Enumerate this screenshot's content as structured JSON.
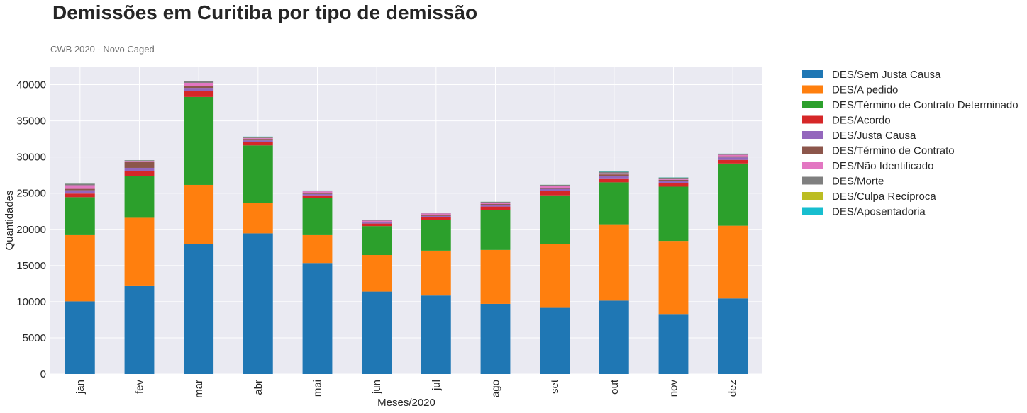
{
  "chart_data": {
    "type": "bar",
    "stacked": true,
    "title": "Demissões em Curitiba por tipo de demissão",
    "subtitle": "CWB 2020 - Novo Caged",
    "xlabel": "Meses/2020",
    "ylabel": "Quantidades",
    "ylim": [
      0,
      42500
    ],
    "yticks": [
      0,
      5000,
      10000,
      15000,
      20000,
      25000,
      30000,
      35000,
      40000
    ],
    "grid": true,
    "legend_position": "right-outside",
    "categories": [
      "jan",
      "fev",
      "mar",
      "abr",
      "mai",
      "jun",
      "jul",
      "ago",
      "set",
      "out",
      "nov",
      "dez"
    ],
    "series": [
      {
        "name": "DES/Sem Justa Causa",
        "color": "#1f77b4",
        "values": [
          10050,
          12150,
          17950,
          19450,
          15350,
          11400,
          10850,
          9700,
          9150,
          10150,
          8300,
          10450
        ]
      },
      {
        "name": "DES/A pedido",
        "color": "#ff7f0e",
        "values": [
          9150,
          9450,
          8200,
          4150,
          3850,
          5050,
          6200,
          7450,
          8850,
          10550,
          10100,
          10050
        ]
      },
      {
        "name": "DES/Término de Contrato Determinado",
        "color": "#2ca02c",
        "values": [
          5250,
          5800,
          12150,
          8000,
          5150,
          4000,
          4250,
          5500,
          6700,
          5800,
          7500,
          8600
        ]
      },
      {
        "name": "DES/Acordo",
        "color": "#d62728",
        "values": [
          500,
          700,
          800,
          500,
          350,
          350,
          350,
          500,
          600,
          550,
          450,
          500
        ]
      },
      {
        "name": "DES/Justa Causa",
        "color": "#9467bd",
        "values": [
          450,
          400,
          450,
          200,
          200,
          150,
          200,
          250,
          300,
          300,
          350,
          350
        ]
      },
      {
        "name": "DES/Término de Contrato",
        "color": "#8c564b",
        "values": [
          200,
          800,
          250,
          200,
          150,
          50,
          150,
          100,
          150,
          250,
          150,
          150
        ]
      },
      {
        "name": "DES/Não Identificado",
        "color": "#e377c2",
        "values": [
          500,
          150,
          450,
          100,
          200,
          200,
          200,
          200,
          250,
          150,
          150,
          200
        ]
      },
      {
        "name": "DES/Morte",
        "color": "#7f7f7f",
        "values": [
          200,
          100,
          200,
          100,
          100,
          100,
          100,
          100,
          150,
          200,
          150,
          150
        ]
      },
      {
        "name": "DES/Culpa Recíproca",
        "color": "#bcbd22",
        "values": [
          10,
          10,
          20,
          100,
          10,
          10,
          10,
          10,
          10,
          10,
          10,
          10
        ]
      },
      {
        "name": "DES/Aposentadoria",
        "color": "#17becf",
        "values": [
          10,
          10,
          20,
          20,
          10,
          10,
          10,
          10,
          10,
          90,
          30,
          10
        ]
      }
    ]
  }
}
